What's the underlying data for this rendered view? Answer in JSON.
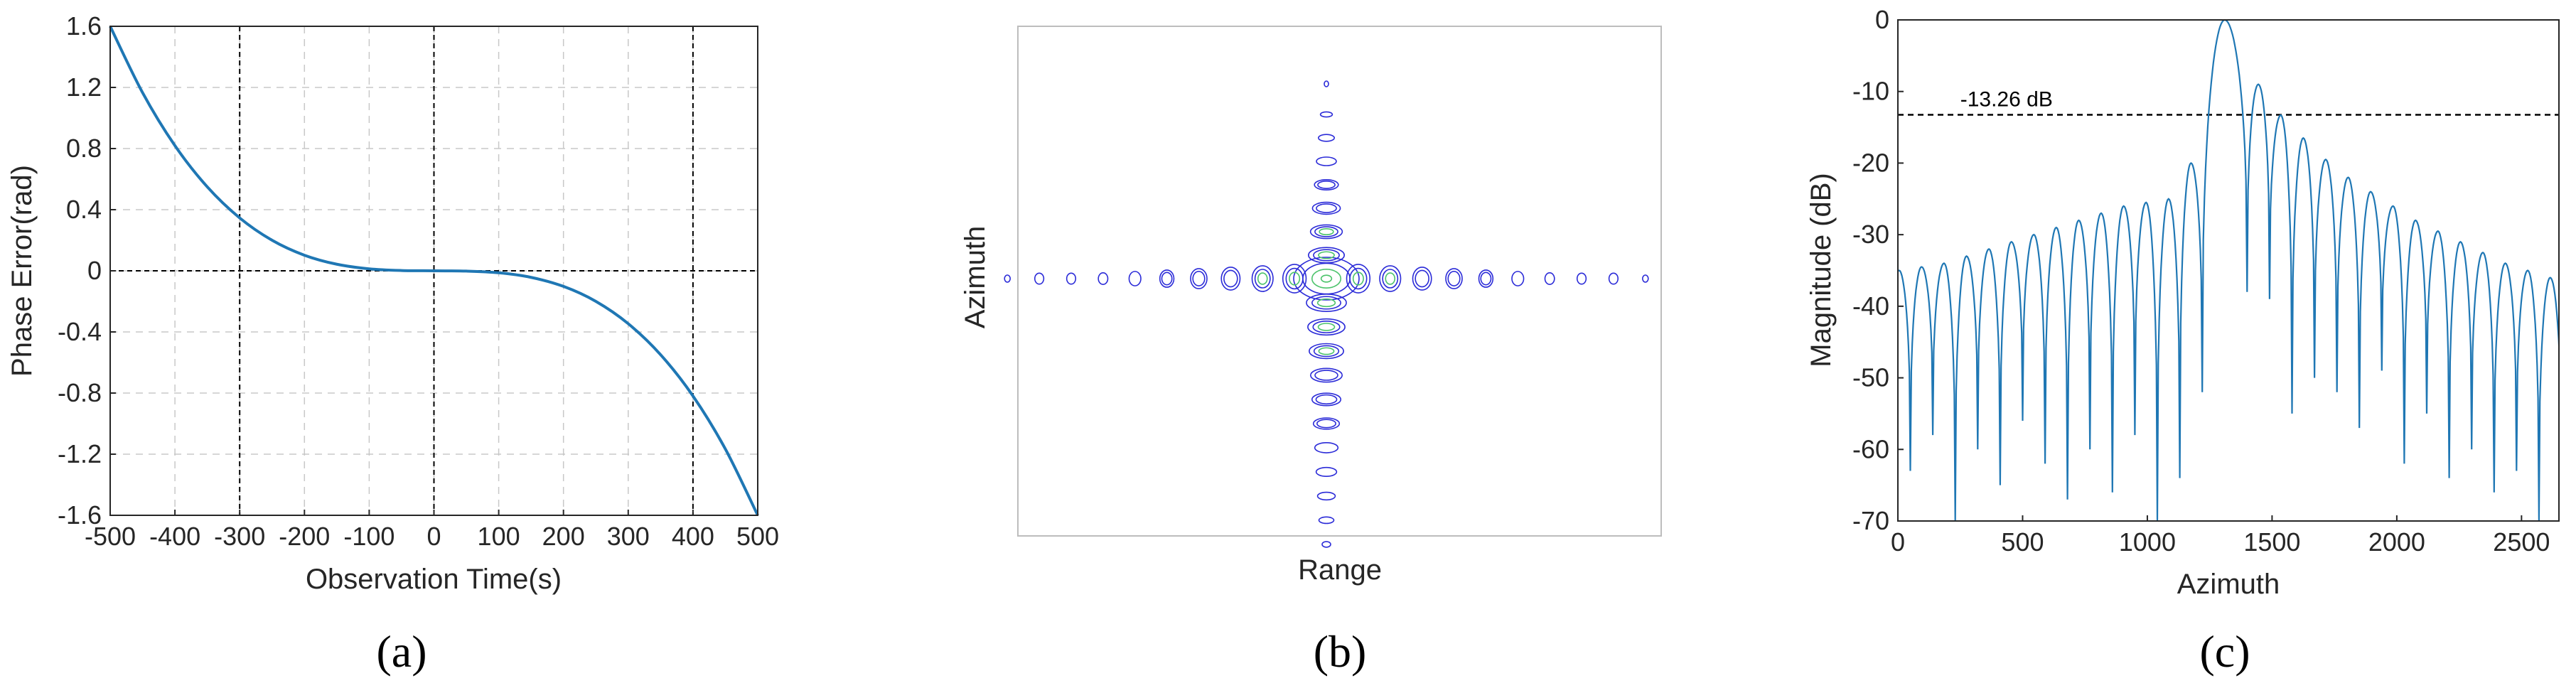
{
  "colors": {
    "line": "#1f77b4",
    "axis": "#262626",
    "grid": "#c8c8c8",
    "dashed": "#000000",
    "contour_low": "#2b2bd8",
    "contour_high": "#4cc36b"
  },
  "chart_data": [
    {
      "type": "line",
      "panel_label": "(a)",
      "xlabel": "Observation Time(s)",
      "ylabel": "Phase Error(rad)",
      "xlim": [
        -500,
        500
      ],
      "ylim": [
        -1.6,
        1.6
      ],
      "xticks": [
        -500,
        -400,
        -300,
        -200,
        -100,
        0,
        100,
        200,
        300,
        400,
        500
      ],
      "yticks": [
        1.6,
        1.2,
        0.8,
        0.4,
        0,
        -0.4,
        -0.8,
        -1.2,
        -1.6
      ],
      "xtick_labels": [
        "-500",
        "-400",
        "-300",
        "-200",
        "-100",
        "0",
        "100",
        "200",
        "300",
        "400",
        "500"
      ],
      "ytick_labels": [
        "1.6",
        "1.2",
        "0.8",
        "0.4",
        "0",
        "-0.4",
        "-0.8",
        "-1.2",
        "-1.6"
      ],
      "grid": true,
      "reference_lines": {
        "x": [
          -300,
          0,
          400
        ],
        "y": [
          0
        ]
      },
      "x": [
        -500,
        -450,
        -400,
        -350,
        -300,
        -250,
        -200,
        -150,
        -100,
        -50,
        0,
        50,
        100,
        150,
        200,
        250,
        300,
        350,
        400,
        450,
        500
      ],
      "y": [
        1.6,
        1.166,
        0.819,
        0.549,
        0.346,
        0.2,
        0.102,
        0.043,
        0.013,
        0.002,
        0,
        -0.002,
        -0.013,
        -0.043,
        -0.102,
        -0.2,
        -0.346,
        -0.549,
        -0.819,
        -1.166,
        -1.6
      ]
    },
    {
      "type": "contour",
      "panel_label": "(b)",
      "xlabel": "Range",
      "ylabel": "Azimuth",
      "grid": false
    },
    {
      "type": "line",
      "panel_label": "(c)",
      "xlabel": "Azimuth",
      "ylabel": "Magnitude (dB)",
      "xlim": [
        0,
        2650
      ],
      "ylim": [
        -70,
        0
      ],
      "xticks": [
        0,
        500,
        1000,
        1500,
        2000,
        2500
      ],
      "yticks": [
        0,
        -10,
        -20,
        -30,
        -40,
        -50,
        -60,
        -70
      ],
      "xtick_labels": [
        "0",
        "500",
        "1000",
        "1500",
        "2000",
        "2500"
      ],
      "ytick_labels": [
        "0",
        "-10",
        "-20",
        "-30",
        "-40",
        "-50",
        "-60",
        "-70"
      ],
      "grid": false,
      "annotation": {
        "text": "-13.26 dB",
        "y": -13.26
      },
      "mainlobe_center": 1310,
      "sidelobe_spacing": 90,
      "sidelobe_peaks_left": [
        -38,
        -36.5,
        -36,
        -35,
        -34.5,
        -34,
        -33,
        -32,
        -31,
        -30,
        -29,
        -28,
        -27,
        -26,
        -25.5,
        -25,
        -20
      ],
      "sidelobe_peaks_right": [
        -9,
        -13.3,
        -16.5,
        -19.5,
        -22,
        -24,
        -26,
        -28,
        -29.5,
        -31,
        -32.5,
        -34,
        -35,
        -36,
        -37,
        -38
      ],
      "null_depths_left": [
        -52,
        -64,
        -70,
        -58,
        -66,
        -60,
        -67,
        -62,
        -56,
        -65,
        -60,
        -70,
        -58,
        -63,
        -57,
        -64,
        -70
      ],
      "null_depths_right": [
        -38,
        -39,
        -55,
        -50,
        -52,
        -57,
        -49,
        -62,
        -55,
        -64,
        -60,
        -66,
        -63,
        -70,
        -66,
        -60,
        -68
      ]
    }
  ]
}
